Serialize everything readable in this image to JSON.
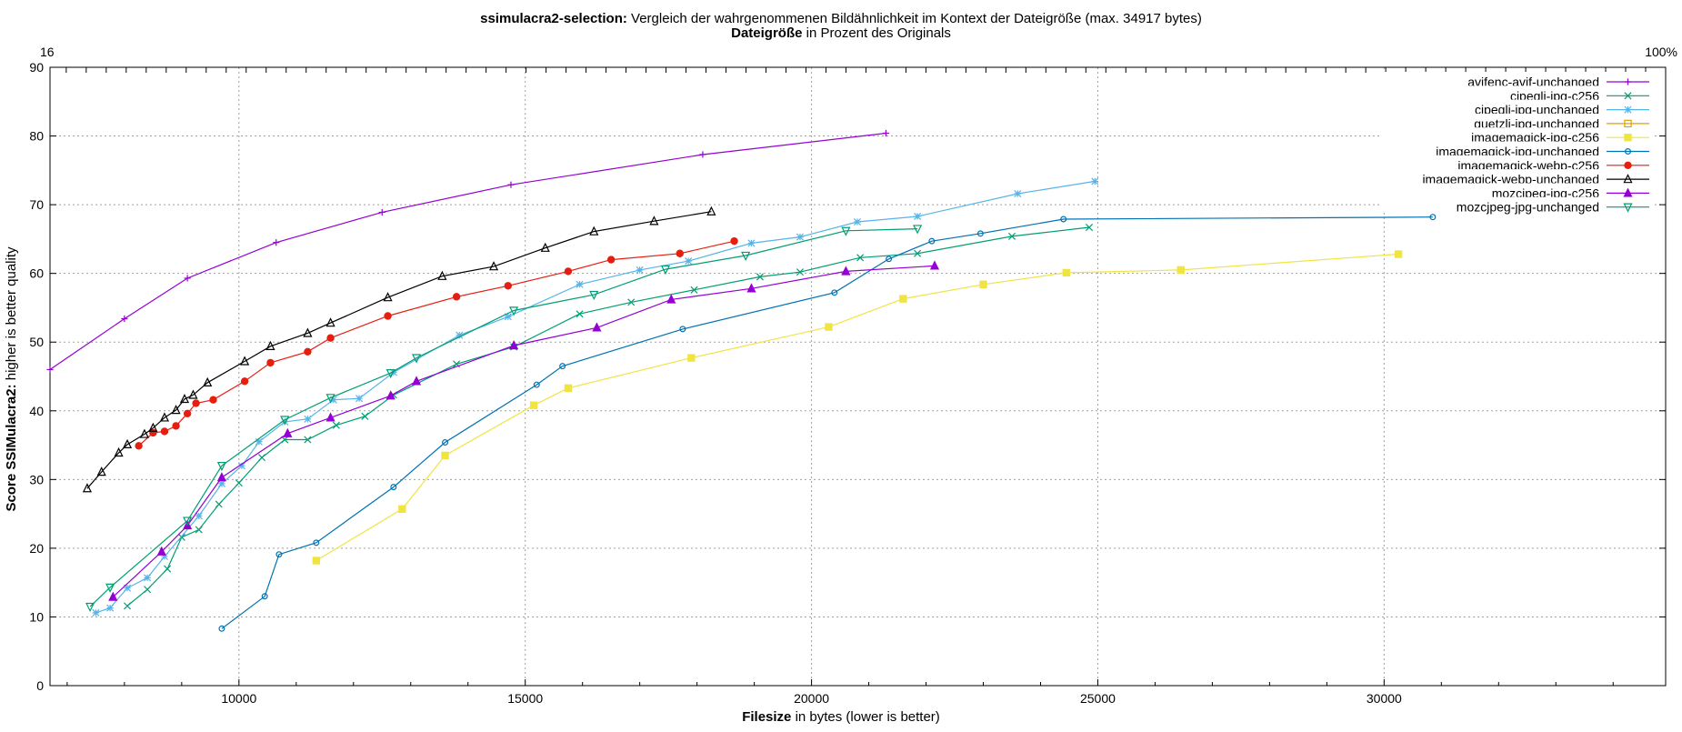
{
  "title": {
    "bold": "ssimulacra2-selection:",
    "rest": " Vergleich der wahrgenommenen Bildähnlichkeit im Kontext der Dateigröße (max. 34917 bytes)"
  },
  "top_axis": {
    "bold": "Dateigröße",
    "rest": " in Prozent des Originals",
    "label_left": "16",
    "label_right": "100%"
  },
  "xlabel": {
    "bold": "Filesize",
    "rest": " in bytes (lower is better)"
  },
  "ylabel": {
    "bold": "Score SSIMulacra2:",
    "rest": " higher is better quality"
  },
  "chart_data": {
    "type": "line",
    "xlim": [
      6700,
      34917
    ],
    "ylim": [
      0,
      90
    ],
    "x_ticks": [
      10000,
      15000,
      20000,
      25000,
      30000
    ],
    "y_ticks": [
      0,
      10,
      20,
      30,
      40,
      50,
      60,
      70,
      80,
      90
    ],
    "grid": true,
    "legend_position": "top-right",
    "series": [
      {
        "name": "avifenc-avif-unchanged",
        "color": "#9400d3",
        "marker": "plus",
        "points": [
          [
            6700,
            46
          ],
          [
            8000,
            53.4
          ],
          [
            9100,
            59.3
          ],
          [
            10650,
            64.5
          ],
          [
            12500,
            68.9
          ],
          [
            14750,
            72.9
          ],
          [
            18100,
            77.3
          ],
          [
            21300,
            80.4
          ]
        ]
      },
      {
        "name": "cjpegli-jpg-c256",
        "color": "#009e73",
        "marker": "x",
        "points": [
          [
            8050,
            11.6
          ],
          [
            8400,
            14
          ],
          [
            8750,
            17
          ],
          [
            9000,
            21.6
          ],
          [
            9300,
            22.7
          ],
          [
            9650,
            26.4
          ],
          [
            10000,
            29.5
          ],
          [
            10400,
            33.2
          ],
          [
            10800,
            35.8
          ],
          [
            11200,
            35.8
          ],
          [
            11700,
            37.9
          ],
          [
            12200,
            39.2
          ],
          [
            12700,
            42.3
          ],
          [
            13800,
            46.8
          ],
          [
            14800,
            49.3
          ],
          [
            15950,
            54.1
          ],
          [
            16850,
            55.8
          ],
          [
            17950,
            57.6
          ],
          [
            19100,
            59.5
          ],
          [
            19800,
            60.2
          ],
          [
            20850,
            62.3
          ],
          [
            21850,
            62.9
          ],
          [
            23500,
            65.4
          ],
          [
            24850,
            66.7
          ]
        ]
      },
      {
        "name": "cjpegli-jpg-unchanged",
        "color": "#56b4e9",
        "marker": "star",
        "points": [
          [
            7500,
            10.6
          ],
          [
            7750,
            11.3
          ],
          [
            8050,
            14.2
          ],
          [
            8400,
            15.7
          ],
          [
            8700,
            18.8
          ],
          [
            9300,
            24.7
          ],
          [
            9700,
            29.4
          ],
          [
            10050,
            32
          ],
          [
            10350,
            35.5
          ],
          [
            10800,
            38.4
          ],
          [
            11200,
            38.8
          ],
          [
            11650,
            41.6
          ],
          [
            12100,
            41.8
          ],
          [
            12700,
            45.6
          ],
          [
            13850,
            51
          ],
          [
            14700,
            53.7
          ],
          [
            15950,
            58.4
          ],
          [
            17000,
            60.5
          ],
          [
            17850,
            61.8
          ],
          [
            18950,
            64.4
          ],
          [
            19800,
            65.3
          ],
          [
            20800,
            67.5
          ],
          [
            21850,
            68.3
          ],
          [
            23600,
            71.6
          ],
          [
            24950,
            73.4
          ]
        ]
      },
      {
        "name": "guetzli-jpg-unchanged",
        "color": "#e69f00",
        "marker": "square-open",
        "points": []
      },
      {
        "name": "imagemagick-jpg-c256",
        "color": "#f0e442",
        "marker": "square",
        "points": [
          [
            11350,
            18.2
          ],
          [
            12850,
            25.7
          ],
          [
            13600,
            33.5
          ],
          [
            15150,
            40.8
          ],
          [
            15750,
            43.3
          ],
          [
            17900,
            47.7
          ],
          [
            20300,
            52.2
          ],
          [
            21600,
            56.3
          ],
          [
            23000,
            58.4
          ],
          [
            24450,
            60.1
          ],
          [
            26450,
            60.5
          ],
          [
            30250,
            62.8
          ]
        ]
      },
      {
        "name": "imagemagick-jpg-unchanged",
        "color": "#0072b2",
        "marker": "circle-open",
        "points": [
          [
            9700,
            8.3
          ],
          [
            10450,
            13
          ],
          [
            10700,
            19.1
          ],
          [
            11350,
            20.8
          ],
          [
            12700,
            28.9
          ],
          [
            13600,
            35.4
          ],
          [
            15200,
            43.8
          ],
          [
            15650,
            46.5
          ],
          [
            17750,
            51.9
          ],
          [
            20400,
            57.2
          ],
          [
            21350,
            62.1
          ],
          [
            22100,
            64.7
          ],
          [
            22950,
            65.8
          ],
          [
            24400,
            67.9
          ],
          [
            30850,
            68.2
          ]
        ]
      },
      {
        "name": "imagemagick-webp-c256",
        "color": "#e51e10",
        "marker": "circle",
        "points": [
          [
            8250,
            34.9
          ],
          [
            8500,
            36.8
          ],
          [
            8700,
            37
          ],
          [
            8900,
            37.8
          ],
          [
            9100,
            39.6
          ],
          [
            9250,
            41.1
          ],
          [
            9550,
            41.6
          ],
          [
            10100,
            44.3
          ],
          [
            10550,
            47
          ],
          [
            11200,
            48.6
          ],
          [
            11600,
            50.6
          ],
          [
            12600,
            53.8
          ],
          [
            13800,
            56.6
          ],
          [
            14700,
            58.2
          ],
          [
            15750,
            60.3
          ],
          [
            16500,
            62
          ],
          [
            17700,
            62.9
          ],
          [
            18650,
            64.7
          ]
        ]
      },
      {
        "name": "imagemagick-webp-unchanged",
        "color": "#000000",
        "marker": "triangle-open",
        "points": [
          [
            7350,
            28.7
          ],
          [
            7600,
            31.1
          ],
          [
            7900,
            33.9
          ],
          [
            8050,
            35.1
          ],
          [
            8350,
            36.6
          ],
          [
            8500,
            37.5
          ],
          [
            8700,
            39
          ],
          [
            8900,
            40.1
          ],
          [
            9050,
            41.7
          ],
          [
            9200,
            42.3
          ],
          [
            9450,
            44.1
          ],
          [
            10100,
            47.2
          ],
          [
            10550,
            49.4
          ],
          [
            11200,
            51.3
          ],
          [
            11600,
            52.8
          ],
          [
            12600,
            56.5
          ],
          [
            13550,
            59.6
          ],
          [
            14450,
            61
          ],
          [
            15350,
            63.7
          ],
          [
            16200,
            66.1
          ],
          [
            17250,
            67.6
          ],
          [
            18250,
            69
          ]
        ]
      },
      {
        "name": "mozcjpeg-jpg-c256",
        "color": "#9400d3",
        "marker": "triangle",
        "points": [
          [
            7800,
            12.9
          ],
          [
            8650,
            19.5
          ],
          [
            9100,
            23.3
          ],
          [
            9700,
            30.3
          ],
          [
            10850,
            36.7
          ],
          [
            11600,
            39
          ],
          [
            12650,
            42.2
          ],
          [
            13100,
            44.3
          ],
          [
            14800,
            49.5
          ],
          [
            16250,
            52.1
          ],
          [
            17550,
            56.2
          ],
          [
            18950,
            57.8
          ],
          [
            20600,
            60.3
          ],
          [
            22150,
            61.1
          ]
        ]
      },
      {
        "name": "mozcjpeg-jpg-unchanged",
        "color": "#009e73",
        "marker": "triangle-down-open",
        "points": [
          [
            7400,
            11.5
          ],
          [
            7750,
            14.3
          ],
          [
            9100,
            24
          ],
          [
            9700,
            32
          ],
          [
            10800,
            38.7
          ],
          [
            11600,
            41.9
          ],
          [
            12650,
            45.5
          ],
          [
            13100,
            47.7
          ],
          [
            14800,
            54.6
          ],
          [
            16200,
            56.9
          ],
          [
            17450,
            60.6
          ],
          [
            18850,
            62.6
          ],
          [
            20600,
            66.2
          ],
          [
            21850,
            66.5
          ]
        ]
      }
    ]
  }
}
